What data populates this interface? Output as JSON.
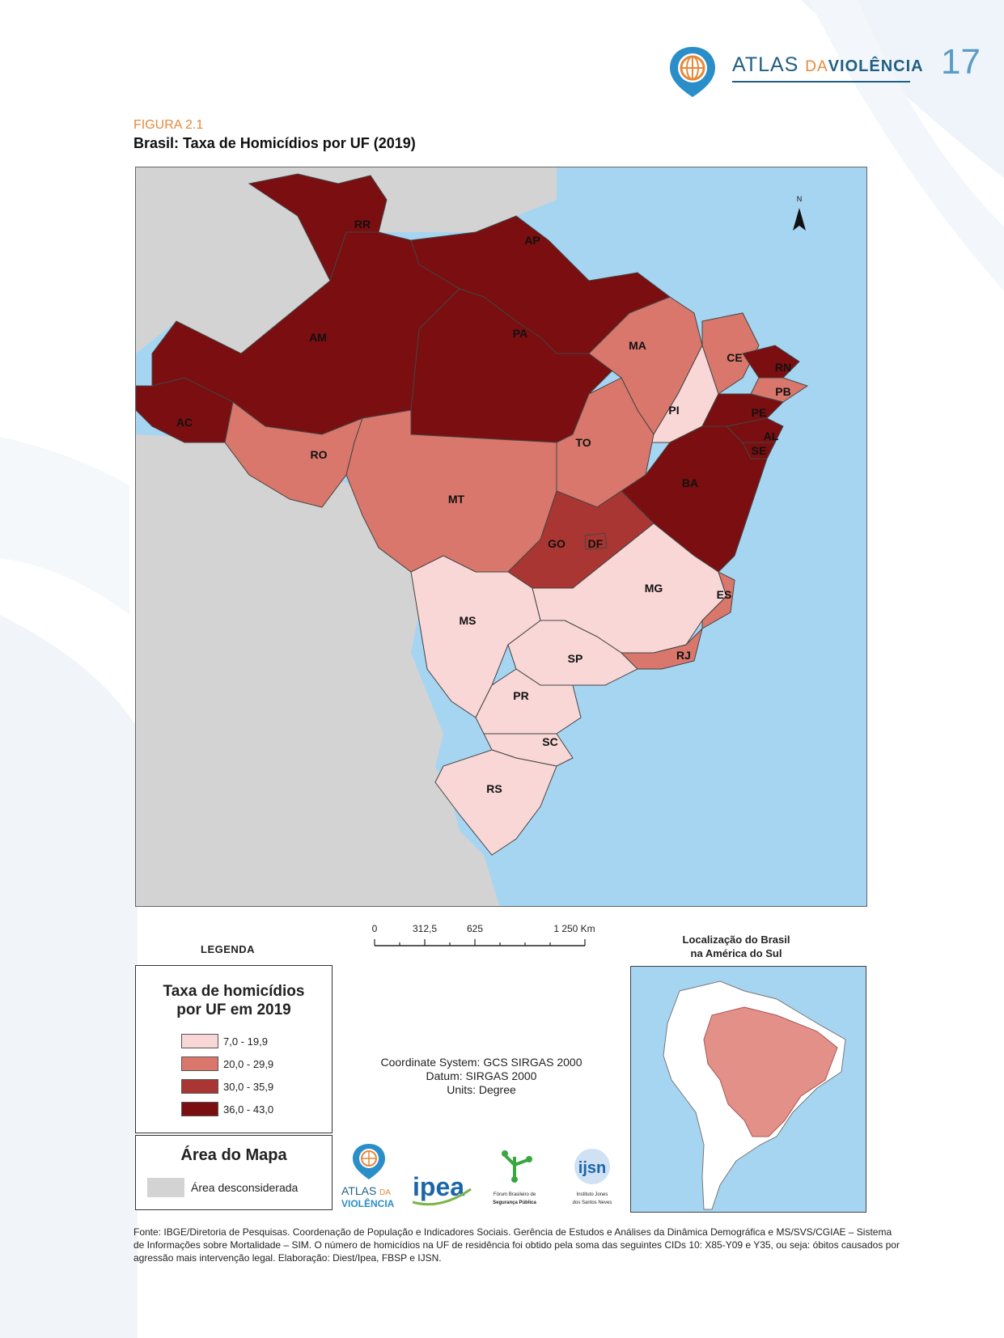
{
  "header": {
    "logo_main": "ATLAS",
    "logo_da": "DA",
    "logo_violencia": "VIOLÊNCIA",
    "page_number": "17"
  },
  "figure": {
    "label": "FIGURA 2.1",
    "title": "Brasil: Taxa de Homicídios por UF (2019)"
  },
  "map": {
    "north_label": "N",
    "states": [
      {
        "uf": "RR",
        "class": 4
      },
      {
        "uf": "AP",
        "class": 4
      },
      {
        "uf": "AM",
        "class": 4
      },
      {
        "uf": "PA",
        "class": 4
      },
      {
        "uf": "AC",
        "class": 4
      },
      {
        "uf": "MA",
        "class": 2
      },
      {
        "uf": "CE",
        "class": 2
      },
      {
        "uf": "RN",
        "class": 4
      },
      {
        "uf": "PB",
        "class": 2
      },
      {
        "uf": "PI",
        "class": 1
      },
      {
        "uf": "PE",
        "class": 4
      },
      {
        "uf": "AL",
        "class": 4
      },
      {
        "uf": "SE",
        "class": 4
      },
      {
        "uf": "TO",
        "class": 2
      },
      {
        "uf": "RO",
        "class": 2
      },
      {
        "uf": "BA",
        "class": 4
      },
      {
        "uf": "MT",
        "class": 2
      },
      {
        "uf": "GO",
        "class": 3
      },
      {
        "uf": "DF",
        "class": 3
      },
      {
        "uf": "MG",
        "class": 1
      },
      {
        "uf": "ES",
        "class": 2
      },
      {
        "uf": "MS",
        "class": 1
      },
      {
        "uf": "SP",
        "class": 1
      },
      {
        "uf": "RJ",
        "class": 2
      },
      {
        "uf": "PR",
        "class": 1
      },
      {
        "uf": "SC",
        "class": 1
      },
      {
        "uf": "RS",
        "class": 1
      }
    ],
    "colors": {
      "class1": "#f8d7d6",
      "class2": "#d9776c",
      "class3": "#a93632",
      "class4": "#7a0e10",
      "ocean": "#a6d5f2",
      "disregarded": "#d3d3d3"
    }
  },
  "scalebar": {
    "ticks": [
      "0",
      "312,5",
      "625",
      "1 250 Km"
    ]
  },
  "legend": {
    "heading": "LEGENDA",
    "title_line1": "Taxa de homicídios",
    "title_line2": "por UF em 2019",
    "items": [
      {
        "label": "7,0 - 19,9"
      },
      {
        "label": "20,0 - 29,9"
      },
      {
        "label": "30,0 - 35,9"
      },
      {
        "label": "36,0 - 43,0"
      }
    ],
    "area_title": "Área do Mapa",
    "area_label": "Área desconsiderada"
  },
  "coordinate_info": {
    "line1": "Coordinate System: GCS SIRGAS 2000",
    "line2": "Datum: SIRGAS 2000",
    "line3": "Units: Degree"
  },
  "inset": {
    "title_line1": "Localização do Brasil",
    "title_line2": "na América do Sul"
  },
  "partners": {
    "atlas_line1": "ATLAS",
    "atlas_da": "DA",
    "atlas_line2": "VIOLÊNCIA",
    "ipea": "ipea",
    "fbsp_line1": "Fórum Brasileiro de",
    "fbsp_line2": "Segurança Pública",
    "ijsn": "ijsn",
    "ijsn_sub1": "Instituto Jones",
    "ijsn_sub2": "dos Santos Neves"
  },
  "source": {
    "text": "Fonte: IBGE/Diretoria de Pesquisas. Coordenação de População e Indicadores Sociais. Gerência de Estudos e Análises da Dinâmica Demográfica e MS/SVS/CGIAE – Sistema de Informações sobre Mortalidade – SIM. O número de homicídios na UF de residência foi obtido pela soma das seguintes CIDs 10: X85-Y09 e Y35, ou seja: óbitos causados por agressão mais intervenção legal. Elaboração: Diest/Ipea, FBSP e IJSN."
  }
}
